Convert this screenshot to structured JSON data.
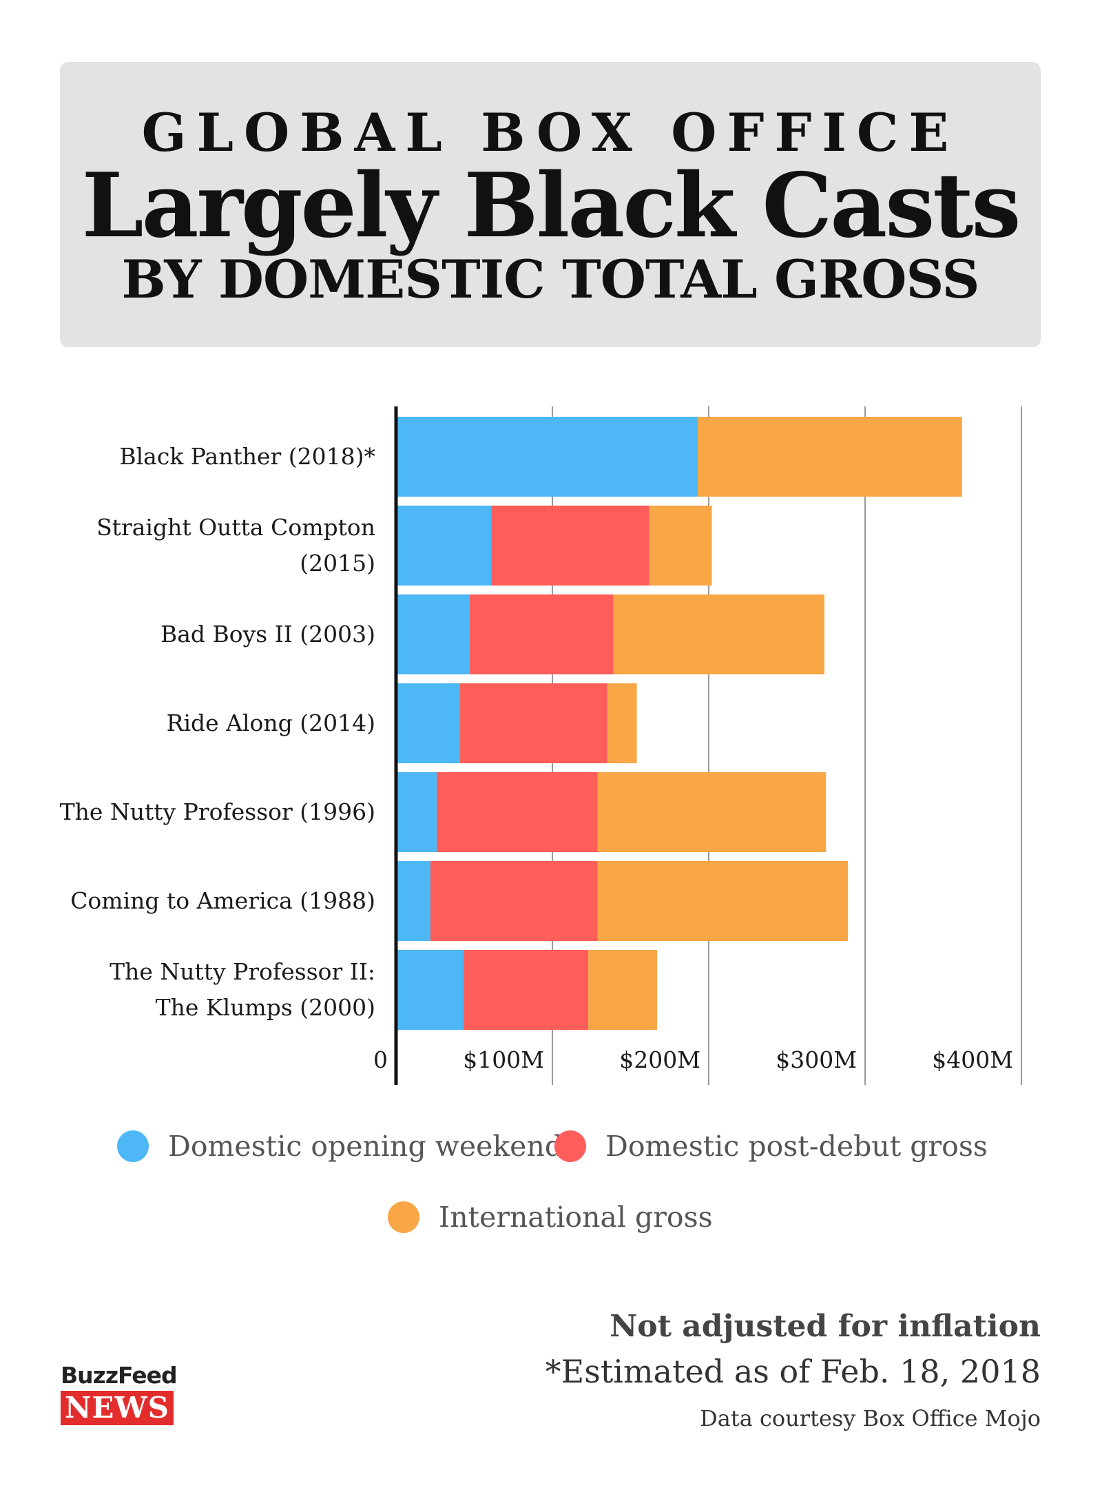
{
  "header": {
    "kicker": "GLOBAL BOX OFFICE",
    "title": "Largely Black Casts",
    "subtitle": "BY DOMESTIC TOTAL GROSS"
  },
  "chart_data": {
    "type": "bar",
    "orientation": "horizontal",
    "stacked": true,
    "categories": [
      "Black Panther (2018)*",
      "Straight Outta Compton (2015)",
      "Bad Boys II (2003)",
      "Ride Along (2014)",
      "The Nutty Professor (1996)",
      "Coming to America (1988)",
      "The Nutty Professor II: The Klumps (2000)"
    ],
    "series": [
      {
        "name": "Domestic opening weekend",
        "color": "#4db8f5",
        "values": [
          193,
          61,
          47,
          41,
          26,
          22,
          43
        ]
      },
      {
        "name": "Domestic post-debut gross",
        "color": "#fe5d5a",
        "values": [
          0,
          101,
          92,
          94,
          103,
          107,
          80
        ]
      },
      {
        "name": "International gross",
        "color": "#f8a646",
        "values": [
          169,
          40,
          135,
          19,
          146,
          160,
          44
        ]
      }
    ],
    "xtick_labels": [
      "0",
      "$100M",
      "$200M",
      "$300M",
      "$400M"
    ],
    "xticks": [
      0,
      100,
      200,
      300,
      400
    ],
    "xlim": [
      0,
      400
    ],
    "grid": true,
    "legend_position": "bottom"
  },
  "notes": {
    "inflation": "Not adjusted for inflation",
    "estimate": "*Estimated as of Feb. 18, 2018",
    "source": "Data courtesy Box Office Mojo"
  },
  "logo": {
    "top": "BuzzFeed",
    "bottom": "NEWS"
  }
}
